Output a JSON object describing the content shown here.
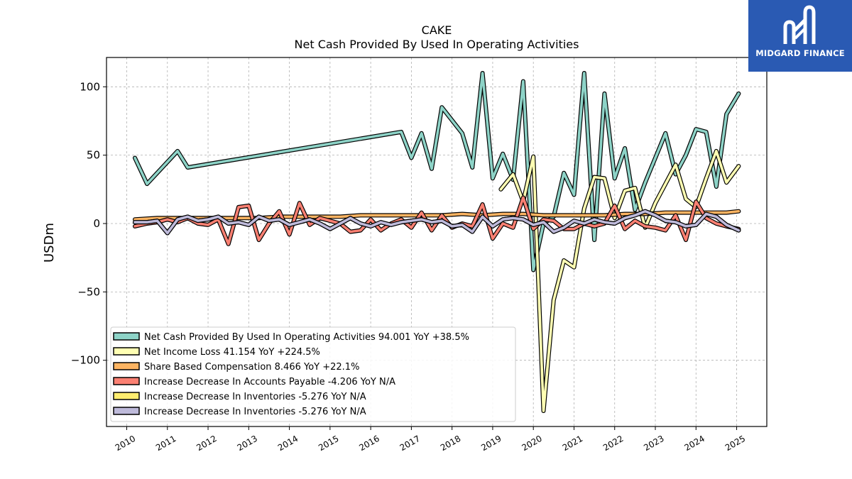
{
  "logo": {
    "name": "MIDGARD FINANCE",
    "bg": "#2a5ab3"
  },
  "chart_data": {
    "type": "line",
    "title": "CAKE",
    "subtitle": "Net Cash Provided By Used In Operating Activities",
    "xlabel": "",
    "ylabel": "USDm",
    "xlim": [
      2009.5,
      2025.75
    ],
    "ylim": [
      -148,
      122
    ],
    "x_ticks": [
      "2010",
      "2011",
      "2012",
      "2013",
      "2014",
      "2015",
      "2016",
      "2017",
      "2018",
      "2019",
      "2020",
      "2021",
      "2022",
      "2023",
      "2024",
      "2025"
    ],
    "y_ticks": [
      100,
      50,
      0,
      -50,
      -100
    ],
    "y_tick_labels": [
      "100",
      "50",
      "0",
      "−50",
      "−100"
    ],
    "grid": true,
    "legend_position": "lower-left",
    "series": [
      {
        "name": "Net Cash Provided By Used In Operating Activities",
        "legend": "Net Cash Provided By Used In Operating Activities  94.001 YoY +38.5%",
        "color": "#8dd3c7",
        "x": [
          2010.2,
          2010.5,
          2011.25,
          2011.5,
          2016.75,
          2017.0,
          2017.25,
          2017.5,
          2017.75,
          2018.25,
          2018.5,
          2018.75,
          2019.0,
          2019.25,
          2019.5,
          2019.75,
          2020.0,
          2020.25,
          2020.5,
          2020.75,
          2021.0,
          2021.25,
          2021.5,
          2021.75,
          2022.0,
          2022.25,
          2022.5,
          2022.75,
          2023.25,
          2023.5,
          2023.75,
          2024.0,
          2024.25,
          2024.5,
          2024.75,
          2025.05
        ],
        "y": [
          48,
          29,
          53,
          41,
          67,
          48,
          66,
          40,
          85,
          66,
          41,
          110,
          33,
          51,
          32,
          104,
          -34,
          0,
          5,
          37,
          21,
          110,
          -12,
          95,
          33,
          55,
          10,
          30,
          66,
          36,
          50,
          69,
          67,
          27,
          80,
          95
        ]
      },
      {
        "name": "Net Income Loss",
        "legend": "Net Income Loss  41.154 YoY +224.5%",
        "color": "#ffffb3",
        "x": [
          2019.2,
          2019.5,
          2019.75,
          2020.0,
          2020.25,
          2020.5,
          2020.75,
          2021.0,
          2021.25,
          2021.5,
          2021.75,
          2022.0,
          2022.25,
          2022.5,
          2022.75,
          2023.0,
          2023.25,
          2023.5,
          2023.75,
          2024.0,
          2024.25,
          2024.5,
          2024.75,
          2025.05
        ],
        "y": [
          25,
          36,
          16,
          49,
          -137,
          -56,
          -27,
          -32,
          11,
          34,
          33,
          4,
          24,
          26,
          -3,
          15,
          29,
          43,
          18,
          12,
          33,
          53,
          30,
          42
        ]
      },
      {
        "name": "Share Based Compensation",
        "legend": "Share Based Compensation  8.466 YoY +22.1%",
        "color": "#fdb462",
        "x": [
          2010.2,
          2010.75,
          2011.25,
          2011.75,
          2012.25,
          2012.75,
          2013.25,
          2013.75,
          2014.25,
          2014.75,
          2015.25,
          2015.75,
          2016.25,
          2016.75,
          2017.25,
          2017.75,
          2018.25,
          2018.75,
          2019.25,
          2019.75,
          2020.25,
          2020.75,
          2021.25,
          2021.75,
          2022.25,
          2022.75,
          2023.25,
          2023.75,
          2024.25,
          2024.75,
          2025.05
        ],
        "y": [
          3,
          4,
          4,
          4,
          4,
          4,
          4,
          5,
          5,
          5,
          5,
          6,
          6,
          6,
          6,
          6,
          7,
          6,
          7,
          7,
          6,
          6,
          6,
          6,
          7,
          7,
          8,
          8,
          8,
          8,
          9
        ]
      },
      {
        "name": "Increase Decrease In Accounts Payable",
        "legend": "Increase Decrease In Accounts Payable  -4.206 YoY N/A",
        "color": "#fb8072",
        "x": [
          2010.2,
          2010.5,
          2010.75,
          2011.0,
          2011.25,
          2011.5,
          2011.75,
          2012.0,
          2012.25,
          2012.5,
          2012.75,
          2013.0,
          2013.25,
          2013.5,
          2013.75,
          2014.0,
          2014.25,
          2014.5,
          2014.75,
          2015.0,
          2015.25,
          2015.5,
          2015.75,
          2016.0,
          2016.25,
          2016.5,
          2016.75,
          2017.0,
          2017.25,
          2017.5,
          2017.75,
          2018.0,
          2018.25,
          2018.5,
          2018.75,
          2019.0,
          2019.25,
          2019.5,
          2019.75,
          2020.0,
          2020.25,
          2020.5,
          2020.75,
          2021.0,
          2021.25,
          2021.5,
          2021.75,
          2022.0,
          2022.25,
          2022.5,
          2022.75,
          2023.0,
          2023.25,
          2023.5,
          2023.75,
          2024.0,
          2024.25,
          2024.5,
          2024.75,
          2025.05
        ],
        "y": [
          -2,
          0,
          1,
          3,
          1,
          4,
          0,
          -1,
          3,
          -15,
          12,
          13,
          -12,
          0,
          9,
          -8,
          15,
          -1,
          4,
          2,
          0,
          -6,
          -5,
          3,
          -5,
          0,
          3,
          -3,
          8,
          -5,
          6,
          -3,
          0,
          -2,
          14,
          -11,
          0,
          -3,
          19,
          -4,
          3,
          2,
          -4,
          -4,
          0,
          -2,
          0,
          13,
          -4,
          2,
          -2,
          -3,
          -5,
          6,
          -12,
          16,
          4,
          0,
          -2,
          -4
        ]
      },
      {
        "name": "Increase Decrease In Inventories",
        "legend": "Increase Decrease In Inventories  -5.276 YoY N/A",
        "color": "#ffed6f",
        "x": [
          2010.2,
          2010.5,
          2010.75,
          2011.0,
          2011.25,
          2011.5,
          2011.75,
          2012.0,
          2012.25,
          2012.5,
          2012.75,
          2013.0,
          2013.25,
          2013.5,
          2013.75,
          2014.0,
          2014.25,
          2014.5,
          2014.75,
          2015.0,
          2015.25,
          2015.5,
          2015.75,
          2016.0,
          2016.25,
          2016.5,
          2016.75,
          2017.0,
          2017.25,
          2017.5,
          2017.75,
          2018.0,
          2018.25,
          2018.5,
          2018.75,
          2019.0,
          2019.25,
          2019.5,
          2019.75,
          2020.0,
          2020.25,
          2020.5,
          2020.75,
          2021.0,
          2021.25,
          2021.5,
          2021.75,
          2022.0,
          2022.25,
          2022.5,
          2022.75,
          2023.0,
          2023.25,
          2023.5,
          2023.75,
          2024.0,
          2024.25,
          2024.5,
          2024.75,
          2025.05
        ],
        "y": [
          1,
          1,
          2,
          -7,
          3,
          5,
          2,
          3,
          5,
          0,
          1,
          -1,
          5,
          2,
          3,
          -1,
          1,
          3,
          0,
          -4,
          0,
          4,
          0,
          -2,
          1,
          -1,
          1,
          2,
          3,
          1,
          2,
          -2,
          -1,
          -6,
          5,
          -2,
          3,
          4,
          3,
          -1,
          1,
          -6,
          -3,
          2,
          0,
          3,
          1,
          0,
          4,
          6,
          9,
          6,
          2,
          1,
          -2,
          -1,
          7,
          5,
          -1,
          -5
        ]
      },
      {
        "name": "Increase Decrease In Inventories",
        "legend": "Increase Decrease In Inventories  -5.276 YoY N/A",
        "color": "#bebada",
        "x": [
          2010.2,
          2010.5,
          2010.75,
          2011.0,
          2011.25,
          2011.5,
          2011.75,
          2012.0,
          2012.25,
          2012.5,
          2012.75,
          2013.0,
          2013.25,
          2013.5,
          2013.75,
          2014.0,
          2014.25,
          2014.5,
          2014.75,
          2015.0,
          2015.25,
          2015.5,
          2015.75,
          2016.0,
          2016.25,
          2016.5,
          2016.75,
          2017.0,
          2017.25,
          2017.5,
          2017.75,
          2018.0,
          2018.25,
          2018.5,
          2018.75,
          2019.0,
          2019.25,
          2019.5,
          2019.75,
          2020.0,
          2020.25,
          2020.5,
          2020.75,
          2021.0,
          2021.25,
          2021.5,
          2021.75,
          2022.0,
          2022.25,
          2022.5,
          2022.75,
          2023.0,
          2023.25,
          2023.5,
          2023.75,
          2024.0,
          2024.25,
          2024.5,
          2024.75,
          2025.05
        ],
        "y": [
          1,
          1,
          2,
          -7,
          3,
          5,
          2,
          3,
          5,
          0,
          1,
          -1,
          5,
          2,
          3,
          -1,
          1,
          3,
          0,
          -4,
          0,
          4,
          0,
          -2,
          1,
          -1,
          1,
          2,
          3,
          1,
          2,
          -2,
          -1,
          -6,
          5,
          -2,
          3,
          4,
          3,
          -1,
          1,
          -6,
          -3,
          2,
          0,
          3,
          1,
          0,
          4,
          6,
          9,
          6,
          2,
          1,
          -2,
          -1,
          7,
          5,
          -1,
          -5
        ]
      }
    ]
  }
}
